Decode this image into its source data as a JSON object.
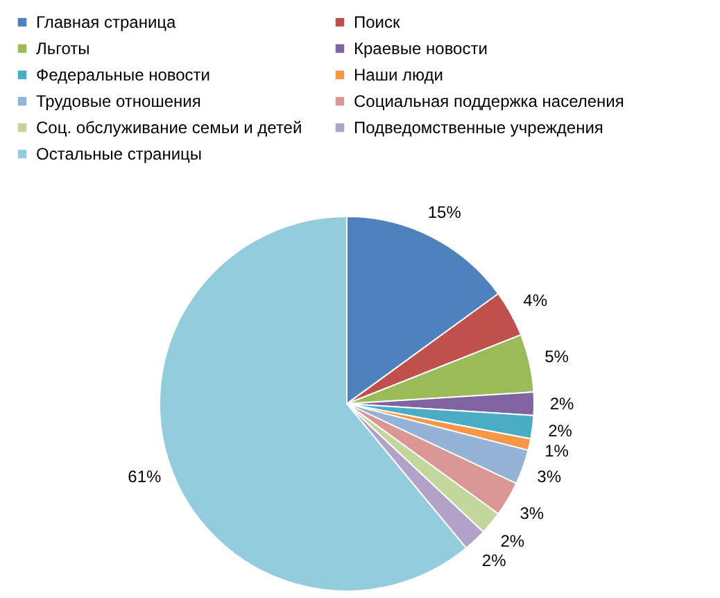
{
  "chart_data": {
    "type": "pie",
    "categories": [
      "Главная страница",
      "Поиск",
      "Льготы",
      "Краевые новости",
      "Федеральные новости",
      "Наши люди",
      "Трудовые отношения",
      "Социальная поддержка населения",
      "Соц. обслуживание семьи и детей",
      "Подведомственные учреждения",
      "Остальные страницы"
    ],
    "values": [
      15,
      4,
      5,
      2,
      2,
      1,
      3,
      3,
      2,
      2,
      61
    ],
    "value_labels": [
      "15%",
      "4%",
      "5%",
      "2%",
      "2%",
      "1%",
      "3%",
      "3%",
      "2%",
      "2%",
      "61%"
    ],
    "colors": [
      "#4f81bd",
      "#c0504d",
      "#9bbb59",
      "#8064a2",
      "#4bacc6",
      "#f79646",
      "#95b3d7",
      "#d99694",
      "#c3d69b",
      "#b3a2c7",
      "#93cddd"
    ],
    "legend": "top"
  }
}
